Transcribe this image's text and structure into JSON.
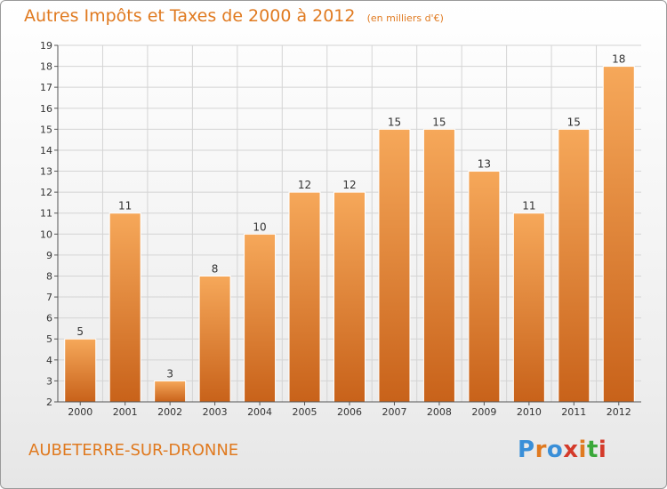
{
  "header": {
    "title": "Autres Impôts et Taxes de 2000 à 2012",
    "unit": "(en milliers d'€)"
  },
  "footer": {
    "commune": "AUBETERRE-SUR-DRONNE",
    "logo": [
      "P",
      "r",
      "o",
      "x",
      "i",
      "t",
      "i"
    ],
    "logo_colors": [
      "#3a8fd8",
      "#e07a20",
      "#3a8fd8",
      "#d43a2a",
      "#e07a20",
      "#3aa83a",
      "#d43a2a"
    ]
  },
  "colors": {
    "bar_top": "#f6a85a",
    "bar_bottom": "#c8621a",
    "title": "#e07a20",
    "axis": "#555555"
  },
  "chart_data": {
    "type": "bar",
    "categories": [
      "2000",
      "2001",
      "2002",
      "2003",
      "2004",
      "2005",
      "2006",
      "2007",
      "2008",
      "2009",
      "2010",
      "2011",
      "2012"
    ],
    "values": [
      5,
      11,
      3,
      8,
      10,
      12,
      12,
      15,
      15,
      13,
      11,
      15,
      18
    ],
    "title": "Autres Impôts et Taxes de 2000 à 2012",
    "xlabel": "",
    "ylabel": "",
    "ylim": [
      2,
      19
    ],
    "yticks": [
      2,
      3,
      4,
      5,
      6,
      7,
      8,
      9,
      10,
      11,
      12,
      13,
      14,
      15,
      16,
      17,
      18,
      19
    ],
    "grid": true
  }
}
